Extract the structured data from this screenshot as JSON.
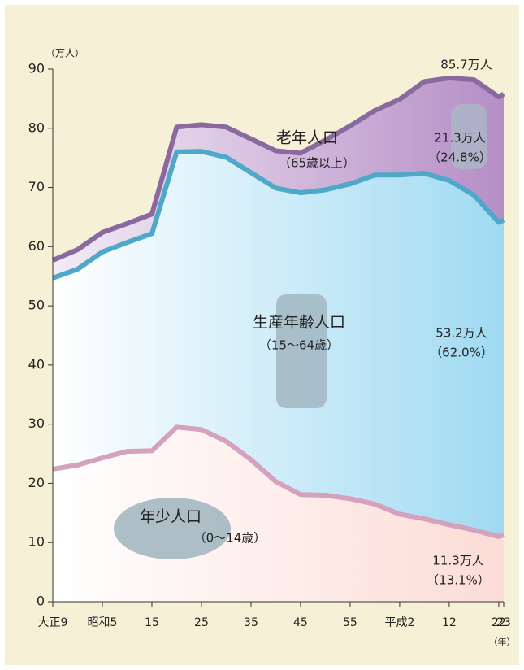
{
  "chart_data": {
    "type": "area",
    "y_unit": "（万人）",
    "x_unit": "（年）",
    "x": [
      1920,
      1925,
      1930,
      1935,
      1940,
      1945,
      1950,
      1955,
      1960,
      1965,
      1970,
      1975,
      1980,
      1985,
      1990,
      1995,
      2000,
      2005,
      2010,
      2011
    ],
    "series": [
      {
        "name": "年少人口",
        "note": "（0〜14歳）",
        "color": "#d4a2bc",
        "fill": "#fcdcd6",
        "values": [
          22.4,
          23.1,
          24.3,
          25.4,
          25.5,
          29.5,
          29.1,
          27.1,
          24.0,
          20.3,
          18.1,
          18.0,
          17.4,
          16.5,
          14.8,
          14.0,
          13.0,
          12.1,
          11.0,
          11.3
        ]
      },
      {
        "name": "生産年齢人口",
        "note": "（15〜64歳）",
        "color": "#4fa8c8",
        "fill": "#9fdaf2",
        "values": [
          32.3,
          33.1,
          34.8,
          35.3,
          36.7,
          46.5,
          47.0,
          48.0,
          48.5,
          49.6,
          51.0,
          51.6,
          53.2,
          55.6,
          57.3,
          58.4,
          58.2,
          56.6,
          53.1,
          53.2
        ]
      },
      {
        "name": "老年人口",
        "note": "（65歳以上）",
        "color": "#8a6a9e",
        "fill": "#b58ec6",
        "values": [
          3.0,
          3.3,
          3.3,
          3.2,
          3.3,
          4.2,
          4.5,
          5.1,
          5.7,
          6.3,
          6.7,
          8.4,
          9.8,
          10.9,
          12.8,
          15.5,
          17.3,
          19.5,
          21.2,
          21.3
        ]
      }
    ],
    "annotations": [
      "85.7万人",
      "21.3万人",
      "（24.8%）",
      "53.2万人",
      "（62.0%）",
      "11.3万人",
      "（13.1%）"
    ],
    "xlim": [
      1920,
      2011
    ],
    "xticks": [
      {
        "value": 1920,
        "label": "大正9"
      },
      {
        "value": 1930,
        "label": "昭和5"
      },
      {
        "value": 1940,
        "label": "15"
      },
      {
        "value": 1950,
        "label": "25"
      },
      {
        "value": 1960,
        "label": "35"
      },
      {
        "value": 1970,
        "label": "45"
      },
      {
        "value": 1980,
        "label": "55"
      },
      {
        "value": 1990,
        "label": "平成2"
      },
      {
        "value": 2000,
        "label": "12"
      },
      {
        "value": 2010,
        "label": "22"
      },
      {
        "value": 2011,
        "label": "23"
      }
    ],
    "ylim": [
      0,
      90
    ],
    "yticks": [
      0,
      10,
      20,
      30,
      40,
      50,
      60,
      70,
      80,
      90
    ]
  }
}
